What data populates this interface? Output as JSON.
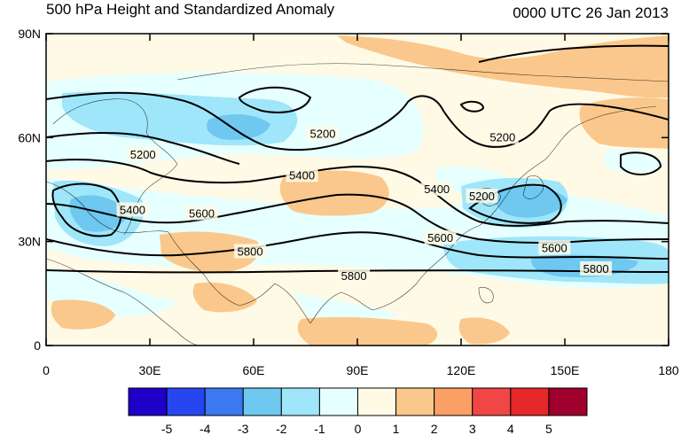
{
  "title_left": "500 hPa Height and Standardized Anomaly",
  "title_right": "0000 UTC 26 Jan 2013",
  "y_ticks": [
    {
      "value": 90,
      "label": "90N"
    },
    {
      "value": 60,
      "label": "60N"
    },
    {
      "value": 30,
      "label": "30N"
    },
    {
      "value": 0,
      "label": "0"
    }
  ],
  "x_ticks": [
    {
      "value": 0,
      "label": "0"
    },
    {
      "value": 30,
      "label": "30E"
    },
    {
      "value": 60,
      "label": "60E"
    },
    {
      "value": 90,
      "label": "90E"
    },
    {
      "value": 120,
      "label": "120E"
    },
    {
      "value": 150,
      "label": "150E"
    },
    {
      "value": 180,
      "label": "180"
    }
  ],
  "map_extent": {
    "lon": [
      0,
      180
    ],
    "lat": [
      0,
      90
    ]
  },
  "contour_labels": [
    {
      "text": "5200",
      "lon": 28,
      "lat": 55
    },
    {
      "text": "5200",
      "lon": 80,
      "lat": 61
    },
    {
      "text": "5200",
      "lon": 132,
      "lat": 60
    },
    {
      "text": "5200",
      "lon": 126,
      "lat": 43
    },
    {
      "text": "5400",
      "lon": 74,
      "lat": 49
    },
    {
      "text": "5400",
      "lon": 113,
      "lat": 45
    },
    {
      "text": "5400",
      "lon": 25,
      "lat": 39
    },
    {
      "text": "5600",
      "lon": 45,
      "lat": 38
    },
    {
      "text": "5600",
      "lon": 114,
      "lat": 31
    },
    {
      "text": "5600",
      "lon": 147,
      "lat": 28
    },
    {
      "text": "5800",
      "lon": 59,
      "lat": 27
    },
    {
      "text": "5800",
      "lon": 89,
      "lat": 20
    },
    {
      "text": "5800",
      "lon": 159,
      "lat": 22
    }
  ],
  "colorbar": {
    "labels": [
      "-5",
      "-4",
      "-3",
      "-2",
      "-1",
      "0",
      "1",
      "2",
      "3",
      "4",
      "5"
    ],
    "colors": [
      "#1e00c8",
      "#2846f0",
      "#3c78f0",
      "#6ec8f0",
      "#a0e6fa",
      "#e6ffff",
      "#fffae6",
      "#fac88c",
      "#faa064",
      "#f04646",
      "#e62828",
      "#a0002d"
    ]
  },
  "anomaly_colors": {
    "neg1": "#e6ffff",
    "neg2": "#a0e6fa",
    "neg3": "#6ec8f0",
    "pos1": "#fffae6",
    "pos2": "#fac88c"
  }
}
